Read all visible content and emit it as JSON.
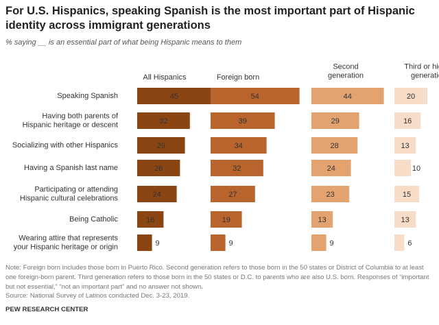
{
  "chart_data": {
    "type": "bar",
    "title": "For U.S. Hispanics, speaking Spanish is the most important part of Hispanic identity across immigrant generations",
    "subtitle": "% saying __ is an essential part of what being Hispanic means to them",
    "categories": [
      "Speaking Spanish",
      "Having both parents of\nHispanic heritage or descent",
      "Socializing with other Hispanics",
      "Having a Spanish last name",
      "Participating or attending\nHispanic cultural celebrations",
      "Being Catholic",
      "Wearing attire that represents\nyour Hispanic heritage or origin"
    ],
    "series": [
      {
        "name": "All Hispanics",
        "color": "#8b4513",
        "values": [
          45,
          32,
          29,
          26,
          24,
          16,
          9
        ]
      },
      {
        "name": "Foreign born",
        "color": "#b8642c",
        "values": [
          54,
          39,
          34,
          32,
          27,
          19,
          9
        ]
      },
      {
        "name": "Second\ngeneration",
        "color": "#e2a371",
        "values": [
          44,
          29,
          28,
          24,
          23,
          13,
          9
        ]
      },
      {
        "name": "Third or higher\ngeneration",
        "color": "#f7dcc8",
        "values": [
          20,
          16,
          13,
          10,
          15,
          13,
          6
        ]
      }
    ],
    "note": "Note: Foreign born includes those born in Puerto Rico. Second generation refers to those born in the 50 states or District of Columbia to at least one foreign-born parent. Third generation refers to those born in the 50 states or D.C. to parents who are also U.S. born. Responses of “important but not essential,” “not an important part” and no answer not shown.",
    "source": "Source: National Survey of Latinos conducted Dec. 3-23, 2019.",
    "credit": "PEW RESEARCH CENTER"
  }
}
